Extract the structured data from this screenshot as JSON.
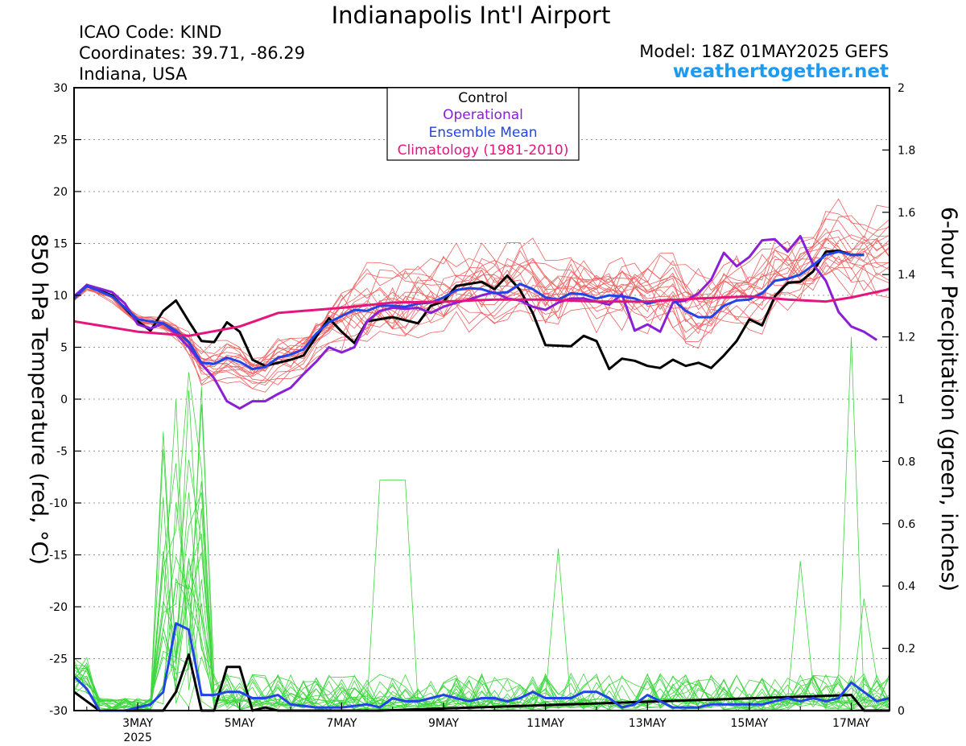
{
  "header": {
    "title": "Indianapolis Int'l Airport",
    "icao": "ICAO Code: KIND",
    "coordinates": "Coordinates: 39.71, -86.29",
    "location": "Indiana, USA",
    "model": "Model: 18Z 01MAY2025 GEFS",
    "website": "weathertogether.net"
  },
  "chart_data": {
    "type": "line",
    "title": "Indianapolis Int'l Airport",
    "x_label": "",
    "x_ticks": [
      "3MAY",
      "5MAY",
      "7MAY",
      "9MAY",
      "11MAY",
      "13MAY",
      "15MAY",
      "17MAY"
    ],
    "x_tick_sublabel": "2025",
    "x_range_days": [
      1.75,
      17.75
    ],
    "left_axis": {
      "label": "850 hPa Temperature (red, °C)",
      "ylim": [
        -30,
        30
      ],
      "ticks": [
        -30,
        -25,
        -20,
        -15,
        -10,
        -5,
        0,
        5,
        10,
        15,
        20,
        25,
        30
      ]
    },
    "right_axis": {
      "label": "6-hour Precipitation (green, inches)",
      "ylim": [
        0,
        2
      ],
      "ticks": [
        "0",
        "0.2",
        "0.4",
        "0.6",
        "0.8",
        "1",
        "1.2",
        "1.4",
        "1.6",
        "1.8",
        "2"
      ]
    },
    "grid": "dotted horizontal",
    "legend": {
      "placement": "top-center",
      "entries": [
        {
          "label": "Control",
          "color": "#000000"
        },
        {
          "label": "Operational",
          "color": "#8a1fd6"
        },
        {
          "label": "Ensemble Mean",
          "color": "#2244e6"
        },
        {
          "label": "Climatology (1981-2010)",
          "color": "#e4157d"
        }
      ]
    },
    "colors": {
      "members_temp": "#f06060",
      "members_precip": "#3ed63e",
      "control": "#000000",
      "operational": "#8a1fd6",
      "mean": "#2244e6",
      "climatology": "#e4157d"
    },
    "temperature_series": [
      {
        "name": "Control",
        "points": [
          [
            1.75,
            9.8
          ],
          [
            2.0,
            10.9
          ],
          [
            2.5,
            10.0
          ],
          [
            3.0,
            7.5
          ],
          [
            3.25,
            6.6
          ],
          [
            3.5,
            8.5
          ],
          [
            3.75,
            9.5
          ],
          [
            4.0,
            7.5
          ],
          [
            4.25,
            5.6
          ],
          [
            4.5,
            5.5
          ],
          [
            4.75,
            7.4
          ],
          [
            5.0,
            6.5
          ],
          [
            5.25,
            3.8
          ],
          [
            5.5,
            3.2
          ],
          [
            5.75,
            3.5
          ],
          [
            6.0,
            3.8
          ],
          [
            6.25,
            4.2
          ],
          [
            6.75,
            7.8
          ],
          [
            7.0,
            6.5
          ],
          [
            7.25,
            5.4
          ],
          [
            7.5,
            7.5
          ],
          [
            8.0,
            7.9
          ],
          [
            8.5,
            7.3
          ],
          [
            8.75,
            9.0
          ],
          [
            9.0,
            9.4
          ],
          [
            9.25,
            10.9
          ],
          [
            9.75,
            11.3
          ],
          [
            10.0,
            10.6
          ],
          [
            10.25,
            11.9
          ],
          [
            10.5,
            10.5
          ],
          [
            10.75,
            8.3
          ],
          [
            11.0,
            5.2
          ],
          [
            11.5,
            5.1
          ],
          [
            11.75,
            6.1
          ],
          [
            12.0,
            5.6
          ],
          [
            12.25,
            2.9
          ],
          [
            12.5,
            3.9
          ],
          [
            12.75,
            3.7
          ],
          [
            13.0,
            3.2
          ],
          [
            13.25,
            3.0
          ],
          [
            13.5,
            3.8
          ],
          [
            13.75,
            3.2
          ],
          [
            14.0,
            3.5
          ],
          [
            14.25,
            3.0
          ],
          [
            14.5,
            4.2
          ],
          [
            14.75,
            5.6
          ],
          [
            15.0,
            7.7
          ],
          [
            15.25,
            7.1
          ],
          [
            15.5,
            9.9
          ],
          [
            15.75,
            11.2
          ],
          [
            16.0,
            11.3
          ],
          [
            16.25,
            12.3
          ],
          [
            16.5,
            14.2
          ],
          [
            16.75,
            14.3
          ],
          [
            17.0,
            13.9
          ],
          [
            17.25,
            13.9
          ]
        ]
      },
      {
        "name": "Operational",
        "points": [
          [
            1.75,
            9.9
          ],
          [
            2.0,
            11.0
          ],
          [
            2.5,
            10.3
          ],
          [
            2.75,
            9.2
          ],
          [
            3.0,
            7.2
          ],
          [
            3.25,
            6.8
          ],
          [
            3.5,
            7.3
          ],
          [
            3.75,
            6.3
          ],
          [
            4.0,
            5.0
          ],
          [
            4.25,
            3.4
          ],
          [
            4.5,
            2.0
          ],
          [
            4.75,
            -0.2
          ],
          [
            5.0,
            -0.9
          ],
          [
            5.25,
            -0.2
          ],
          [
            5.5,
            -0.2
          ],
          [
            5.75,
            0.5
          ],
          [
            6.0,
            1.1
          ],
          [
            6.25,
            2.4
          ],
          [
            6.5,
            3.6
          ],
          [
            6.75,
            5.0
          ],
          [
            7.0,
            4.5
          ],
          [
            7.25,
            5.0
          ],
          [
            7.5,
            7.5
          ],
          [
            7.75,
            8.5
          ],
          [
            8.0,
            8.8
          ],
          [
            8.25,
            8.7
          ],
          [
            8.5,
            8.8
          ],
          [
            8.75,
            8.3
          ],
          [
            9.0,
            8.9
          ],
          [
            9.25,
            9.3
          ],
          [
            9.5,
            9.6
          ],
          [
            9.75,
            10.0
          ],
          [
            10.0,
            10.3
          ],
          [
            10.25,
            9.7
          ],
          [
            10.5,
            9.5
          ],
          [
            10.75,
            8.9
          ],
          [
            11.0,
            8.6
          ],
          [
            11.25,
            9.3
          ],
          [
            11.5,
            9.7
          ],
          [
            11.75,
            9.7
          ],
          [
            12.0,
            9.4
          ],
          [
            12.25,
            9.1
          ],
          [
            12.5,
            10.1
          ],
          [
            12.75,
            6.6
          ],
          [
            13.0,
            7.2
          ],
          [
            13.25,
            6.5
          ],
          [
            13.5,
            9.3
          ],
          [
            13.75,
            9.5
          ],
          [
            14.0,
            10.2
          ],
          [
            14.25,
            11.5
          ],
          [
            14.5,
            14.1
          ],
          [
            14.75,
            12.8
          ],
          [
            15.0,
            13.7
          ],
          [
            15.25,
            15.3
          ],
          [
            15.5,
            15.4
          ],
          [
            15.75,
            14.2
          ],
          [
            16.0,
            15.7
          ],
          [
            16.25,
            13.0
          ],
          [
            16.5,
            11.4
          ],
          [
            16.75,
            8.4
          ],
          [
            17.0,
            7.0
          ],
          [
            17.25,
            6.5
          ],
          [
            17.5,
            5.7
          ]
        ]
      },
      {
        "name": "Ensemble Mean",
        "points": [
          [
            1.75,
            9.7
          ],
          [
            2.0,
            10.9
          ],
          [
            2.5,
            9.9
          ],
          [
            2.75,
            8.8
          ],
          [
            3.0,
            7.7
          ],
          [
            3.25,
            7.5
          ],
          [
            3.5,
            7.3
          ],
          [
            3.75,
            6.6
          ],
          [
            4.0,
            5.5
          ],
          [
            4.25,
            3.5
          ],
          [
            4.5,
            3.4
          ],
          [
            4.75,
            4.0
          ],
          [
            5.0,
            3.6
          ],
          [
            5.25,
            2.9
          ],
          [
            5.5,
            3.1
          ],
          [
            5.75,
            4.0
          ],
          [
            6.0,
            4.3
          ],
          [
            6.25,
            4.8
          ],
          [
            6.5,
            6.3
          ],
          [
            6.75,
            7.4
          ],
          [
            7.0,
            8.0
          ],
          [
            7.25,
            8.6
          ],
          [
            7.5,
            8.5
          ],
          [
            7.75,
            9.0
          ],
          [
            8.0,
            9.0
          ],
          [
            8.25,
            8.9
          ],
          [
            8.5,
            9.2
          ],
          [
            8.75,
            9.3
          ],
          [
            9.0,
            9.8
          ],
          [
            9.25,
            10.5
          ],
          [
            9.5,
            10.7
          ],
          [
            9.75,
            10.6
          ],
          [
            10.0,
            10.2
          ],
          [
            10.25,
            10.3
          ],
          [
            10.5,
            11.1
          ],
          [
            10.75,
            10.6
          ],
          [
            11.0,
            9.8
          ],
          [
            11.25,
            9.6
          ],
          [
            11.5,
            10.2
          ],
          [
            11.75,
            10.1
          ],
          [
            12.0,
            9.7
          ],
          [
            12.25,
            10.0
          ],
          [
            12.5,
            9.9
          ],
          [
            12.75,
            9.7
          ],
          [
            13.0,
            9.2
          ],
          [
            13.25,
            9.5
          ],
          [
            13.5,
            9.6
          ],
          [
            13.75,
            8.5
          ],
          [
            14.0,
            7.9
          ],
          [
            14.25,
            7.9
          ],
          [
            14.5,
            9.0
          ],
          [
            14.75,
            9.5
          ],
          [
            15.0,
            9.6
          ],
          [
            15.25,
            10.2
          ],
          [
            15.5,
            11.4
          ],
          [
            15.75,
            11.6
          ],
          [
            16.0,
            12.0
          ],
          [
            16.25,
            12.9
          ],
          [
            16.5,
            13.9
          ],
          [
            16.75,
            14.2
          ],
          [
            17.0,
            13.9
          ],
          [
            17.25,
            13.9
          ]
        ]
      },
      {
        "name": "Climatology (1981-2010)",
        "points": [
          [
            1.75,
            7.5
          ],
          [
            3.0,
            6.5
          ],
          [
            4.0,
            6.1
          ],
          [
            5.0,
            7.0
          ],
          [
            5.75,
            8.3
          ],
          [
            7.0,
            8.8
          ],
          [
            8.0,
            9.3
          ],
          [
            9.0,
            9.4
          ],
          [
            10.0,
            9.6
          ],
          [
            11.0,
            9.6
          ],
          [
            12.0,
            9.4
          ],
          [
            13.0,
            9.4
          ],
          [
            14.0,
            9.7
          ],
          [
            15.0,
            9.9
          ],
          [
            15.75,
            9.6
          ],
          [
            16.5,
            9.4
          ],
          [
            17.0,
            9.8
          ],
          [
            17.75,
            10.6
          ]
        ]
      }
    ],
    "precipitation_series": [
      {
        "name": "Control",
        "points": [
          [
            1.75,
            0.06
          ],
          [
            2.0,
            0.03
          ],
          [
            2.25,
            0.0
          ],
          [
            3.0,
            0.0
          ],
          [
            3.25,
            0.0
          ],
          [
            3.5,
            0.0
          ],
          [
            3.75,
            0.06
          ],
          [
            4.0,
            0.18
          ],
          [
            4.25,
            0.0
          ],
          [
            4.5,
            0.0
          ],
          [
            4.75,
            0.14
          ],
          [
            5.0,
            0.14
          ],
          [
            5.25,
            0.0
          ],
          [
            5.5,
            0.01
          ],
          [
            5.75,
            0.0
          ],
          [
            7.0,
            0.0
          ],
          [
            7.75,
            0.0
          ],
          [
            17.0,
            0.05
          ],
          [
            17.25,
            0.0
          ],
          [
            17.75,
            0.0
          ]
        ]
      },
      {
        "name": "Ensemble Mean",
        "points": [
          [
            1.75,
            0.11
          ],
          [
            2.0,
            0.07
          ],
          [
            2.25,
            0.0
          ],
          [
            2.75,
            0.0
          ],
          [
            3.25,
            0.02
          ],
          [
            3.5,
            0.06
          ],
          [
            3.75,
            0.28
          ],
          [
            4.0,
            0.26
          ],
          [
            4.25,
            0.05
          ],
          [
            4.5,
            0.05
          ],
          [
            4.75,
            0.06
          ],
          [
            5.0,
            0.06
          ],
          [
            5.25,
            0.04
          ],
          [
            5.5,
            0.04
          ],
          [
            5.75,
            0.05
          ],
          [
            6.0,
            0.02
          ],
          [
            6.5,
            0.01
          ],
          [
            7.0,
            0.01
          ],
          [
            7.5,
            0.02
          ],
          [
            7.75,
            0.01
          ],
          [
            8.0,
            0.04
          ],
          [
            8.25,
            0.03
          ],
          [
            8.5,
            0.03
          ],
          [
            8.75,
            0.04
          ],
          [
            9.0,
            0.05
          ],
          [
            9.25,
            0.04
          ],
          [
            9.5,
            0.03
          ],
          [
            9.75,
            0.04
          ],
          [
            10.0,
            0.04
          ],
          [
            10.25,
            0.03
          ],
          [
            10.5,
            0.04
          ],
          [
            10.75,
            0.06
          ],
          [
            11.0,
            0.04
          ],
          [
            11.25,
            0.04
          ],
          [
            11.5,
            0.04
          ],
          [
            11.75,
            0.06
          ],
          [
            12.0,
            0.06
          ],
          [
            12.25,
            0.04
          ],
          [
            12.5,
            0.01
          ],
          [
            12.75,
            0.02
          ],
          [
            13.0,
            0.05
          ],
          [
            13.25,
            0.03
          ],
          [
            13.5,
            0.01
          ],
          [
            13.75,
            0.01
          ],
          [
            14.0,
            0.01
          ],
          [
            14.25,
            0.02
          ],
          [
            14.5,
            0.02
          ],
          [
            14.75,
            0.02
          ],
          [
            15.0,
            0.02
          ],
          [
            15.25,
            0.02
          ],
          [
            15.5,
            0.03
          ],
          [
            15.75,
            0.04
          ],
          [
            16.0,
            0.03
          ],
          [
            16.25,
            0.04
          ],
          [
            16.5,
            0.03
          ],
          [
            16.75,
            0.04
          ],
          [
            17.0,
            0.09
          ],
          [
            17.25,
            0.06
          ],
          [
            17.5,
            0.03
          ],
          [
            17.75,
            0.04
          ]
        ]
      }
    ],
    "notable_peaks": [
      {
        "series": "ensemble members precipitation",
        "date": "3MAY-4MAY",
        "max_inches": 1.15
      },
      {
        "series": "ensemble members precipitation",
        "date": "8MAY",
        "max_inches": 0.74
      },
      {
        "series": "ensemble members precipitation",
        "date": "17MAY",
        "max_inches": 1.2
      },
      {
        "series": "ensemble members temperature",
        "date": "17MAY",
        "max_c": 20.4
      }
    ]
  }
}
